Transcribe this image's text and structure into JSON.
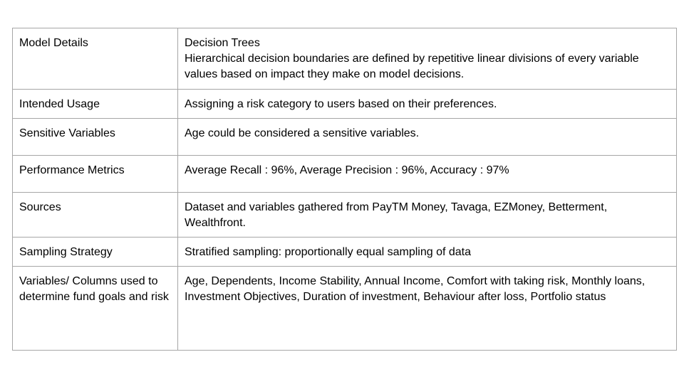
{
  "rows": [
    {
      "label": "Model Details",
      "value_title": "Decision Trees",
      "value": "Hierarchical decision boundaries are defined by repetitive linear divisions of every variable values based on impact they make on model decisions."
    },
    {
      "label": "Intended Usage",
      "value": "Assigning a risk category to users based on their preferences."
    },
    {
      "label": "Sensitive Variables",
      "value": "Age could be considered a sensitive variables."
    },
    {
      "label": "Performance Metrics",
      "value": "Average Recall : 96%, Average Precision : 96%, Accuracy : 97%"
    },
    {
      "label": "Sources",
      "value": "Dataset and variables gathered from PayTM Money, Tavaga, EZMoney, Betterment, Wealthfront."
    },
    {
      "label": "Sampling Strategy",
      "value": "Stratified sampling: proportionally equal sampling of data"
    },
    {
      "label": "Variables/ Columns used to determine fund goals and risk",
      "value": "Age, Dependents, Income Stability, Annual Income, Comfort with taking risk, Monthly loans, Investment Objectives, Duration of investment, Behaviour after loss, Portfolio status"
    }
  ]
}
